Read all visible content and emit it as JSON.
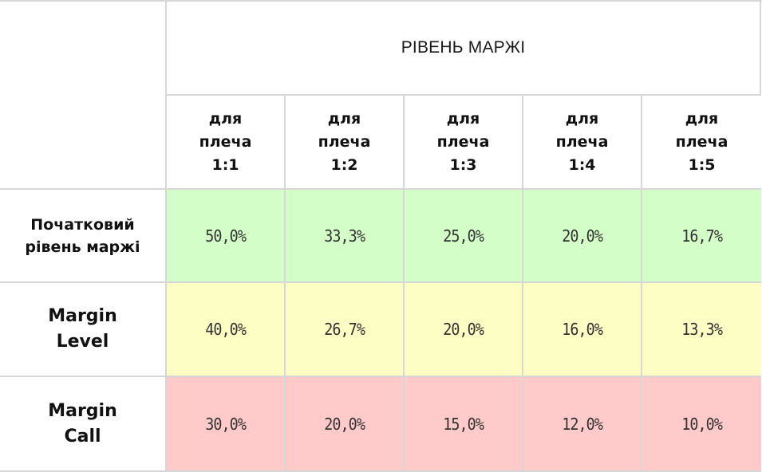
{
  "header": {
    "title": "РІВЕНЬ МАРЖІ",
    "leverage": [
      "для\nплеча\n1:1",
      "для\nплеча\n1:2",
      "для\nплеча\n1:3",
      "для\nплеча\n1:4",
      "для\nплеча\n1:5"
    ]
  },
  "rows": [
    {
      "label": "Початковий\nрівень маржі",
      "color": "#d3fec7",
      "values": [
        "50,0%",
        "33,3%",
        "25,0%",
        "20,0%",
        "16,7%"
      ]
    },
    {
      "label": "Margin\nLevel",
      "color": "#fdfec4",
      "values": [
        "40,0%",
        "26,7%",
        "20,0%",
        "16,0%",
        "13,3%"
      ]
    },
    {
      "label": "Margin\nCall",
      "color": "#fecaca",
      "values": [
        "30,0%",
        "20,0%",
        "15,0%",
        "12,0%",
        "10,0%"
      ]
    }
  ]
}
